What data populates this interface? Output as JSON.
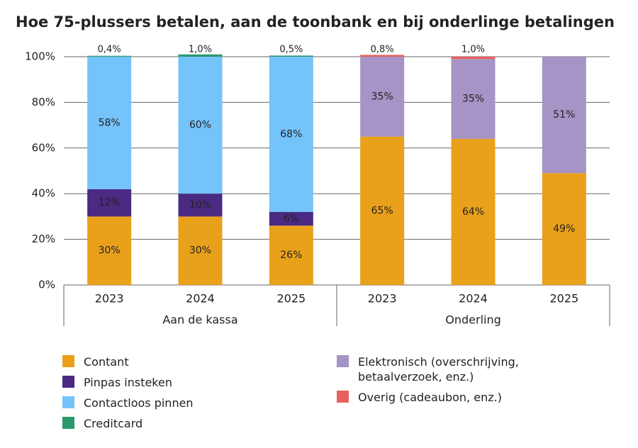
{
  "chart_data": {
    "type": "stacked-bar",
    "title": "Hoe 75-plussers betalen, aan de toonbank en bij onderlinge betalingen",
    "groups": [
      {
        "name": "Aan de kassa",
        "categories": [
          "2023",
          "2024",
          "2025"
        ]
      },
      {
        "name": "Onderling",
        "categories": [
          "2023",
          "2024",
          "2025"
        ]
      }
    ],
    "series": [
      {
        "name": "Contant",
        "color": "#e9a01b",
        "values": [
          30,
          30,
          26,
          65,
          64,
          49
        ],
        "value_labels": [
          "30%",
          "30%",
          "26%",
          "65%",
          "64%",
          "49%"
        ]
      },
      {
        "name": "Pinpas insteken",
        "color": "#4a2a82",
        "label_color": "#ffffff",
        "values": [
          12,
          10,
          6,
          null,
          null,
          null
        ],
        "value_labels": [
          "12%",
          "10%",
          "6%",
          null,
          null,
          null
        ]
      },
      {
        "name": "Contactloos pinnen",
        "color": "#75c3fb",
        "values": [
          58,
          60,
          68,
          null,
          null,
          null
        ],
        "value_labels": [
          "58%",
          "60%",
          "68%",
          null,
          null,
          null
        ]
      },
      {
        "name": "Creditcard",
        "color": "#2a9a6c",
        "values": [
          0.4,
          1.0,
          0.5,
          null,
          null,
          null
        ],
        "value_labels": [
          "0,4%",
          "1,0%",
          "0,5%",
          null,
          null,
          null
        ]
      },
      {
        "name": "Elektronisch (overschrijving, betaalverzoek, enz.)",
        "color": "#a594c5",
        "values": [
          null,
          null,
          null,
          35,
          35,
          51
        ],
        "value_labels": [
          null,
          null,
          null,
          "35%",
          "35%",
          "51%"
        ]
      },
      {
        "name": "Overig (cadeaubon, enz.)",
        "color": "#e8605d",
        "values": [
          null,
          null,
          null,
          0.8,
          1.0,
          null
        ],
        "value_labels": [
          null,
          null,
          null,
          "0,8%",
          "1,0%",
          null
        ]
      }
    ],
    "ylim": [
      0,
      100
    ],
    "yticks": [
      {
        "value": 0,
        "label": "0%"
      },
      {
        "value": 20,
        "label": "20%"
      },
      {
        "value": 40,
        "label": "40%"
      },
      {
        "value": 60,
        "label": "60%"
      },
      {
        "value": 80,
        "label": "80%"
      },
      {
        "value": 100,
        "label": "100%"
      }
    ],
    "grid": true
  }
}
